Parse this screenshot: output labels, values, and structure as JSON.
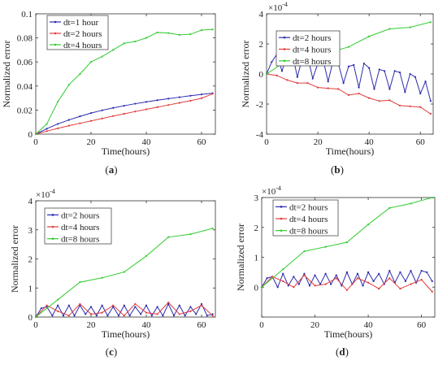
{
  "figure": {
    "panels": [
      {
        "id": "a",
        "label_open": "(",
        "label_letter": "a",
        "label_close": ")",
        "ylabel": "Normalized error",
        "xlabel": "Time(hours)",
        "exponent": "",
        "xlim": [
          0,
          65
        ],
        "ylim": [
          0,
          0.1
        ],
        "xticks": [
          0,
          20,
          40,
          60
        ],
        "yticks": [
          0,
          0.02,
          0.04,
          0.06,
          0.08,
          0.1
        ],
        "ytick_labels": [
          "0",
          "0.02",
          "0.04",
          "0.06",
          "0.08",
          "0.1"
        ]
      },
      {
        "id": "b",
        "label_open": "(",
        "label_letter": "b",
        "label_close": ")",
        "ylabel": "Normalized error",
        "xlabel": "Time(hours)",
        "exponent": "×10",
        "exponent_power": "-4",
        "xlim": [
          0,
          65
        ],
        "ylim": [
          -4,
          4
        ],
        "xticks": [
          0,
          20,
          40,
          60
        ],
        "yticks": [
          -4,
          -2,
          0,
          2,
          4
        ],
        "ytick_labels": [
          "-4",
          "-2",
          "0",
          "2",
          "4"
        ]
      },
      {
        "id": "c",
        "label_open": "(",
        "label_letter": "c",
        "label_close": ")",
        "ylabel": "Normalized error",
        "xlabel": "Time(hours)",
        "exponent": "×10",
        "exponent_power": "-4",
        "xlim": [
          0,
          65
        ],
        "ylim": [
          0,
          4
        ],
        "xticks": [
          0,
          20,
          40,
          60
        ],
        "yticks": [
          0,
          1,
          2,
          3,
          4
        ],
        "ytick_labels": [
          "0",
          "1",
          "2",
          "3",
          "4"
        ]
      },
      {
        "id": "d",
        "label_open": "(",
        "label_letter": "d",
        "label_close": ")",
        "ylabel": "Normalized error",
        "xlabel": "Time(hours)",
        "exponent": "×10",
        "exponent_power": "-4",
        "xlim": [
          0,
          65
        ],
        "ylim": [
          -1,
          3
        ],
        "xticks": [
          0,
          20,
          40,
          60
        ],
        "yticks": [
          -1,
          0,
          1,
          2,
          3
        ],
        "ytick_labels": [
          "",
          "0",
          "1",
          "2",
          "3"
        ]
      }
    ]
  },
  "chart_data": [
    {
      "type": "line",
      "panel": "a",
      "xlabel": "Time(hours)",
      "ylabel": "Normalized error",
      "xlim": [
        0,
        65
      ],
      "ylim": [
        0,
        0.1
      ],
      "legend": "top-left",
      "grid": false,
      "series": [
        {
          "name": "dt=1 hour",
          "color": "#2b2bb0",
          "x": [
            0,
            4,
            8,
            12,
            16,
            20,
            24,
            28,
            32,
            36,
            40,
            44,
            48,
            52,
            56,
            60,
            64
          ],
          "y": [
            0,
            0.0045,
            0.0085,
            0.0118,
            0.0148,
            0.0175,
            0.0198,
            0.0218,
            0.0236,
            0.0253,
            0.0268,
            0.0282,
            0.0295,
            0.0307,
            0.0319,
            0.033,
            0.034
          ]
        },
        {
          "name": "dt=2 hours",
          "color": "#e03c3c",
          "x": [
            0,
            4,
            8,
            12,
            16,
            20,
            24,
            28,
            32,
            36,
            40,
            44,
            48,
            52,
            56,
            60,
            64
          ],
          "y": [
            0,
            0.0025,
            0.0048,
            0.007,
            0.009,
            0.011,
            0.013,
            0.015,
            0.0169,
            0.0188,
            0.0206,
            0.0224,
            0.0242,
            0.026,
            0.0278,
            0.0298,
            0.0335
          ]
        },
        {
          "name": "dt=4 hours",
          "color": "#33cc33",
          "x": [
            0,
            4,
            8,
            12,
            16,
            20,
            24,
            28,
            32,
            36,
            40,
            44,
            48,
            52,
            56,
            60,
            64
          ],
          "y": [
            0,
            0.0085,
            0.027,
            0.041,
            0.05,
            0.06,
            0.0645,
            0.07,
            0.0755,
            0.077,
            0.08,
            0.0845,
            0.084,
            0.0825,
            0.083,
            0.0865,
            0.087
          ]
        }
      ]
    },
    {
      "type": "line",
      "panel": "b",
      "xlabel": "Time(hours)",
      "ylabel": "Normalized error",
      "y_scale_note": "×10^-4",
      "xlim": [
        0,
        65
      ],
      "ylim": [
        -4,
        4
      ],
      "legend": "top-right",
      "grid": false,
      "series": [
        {
          "name": "dt=2 hours",
          "color": "#2b2bb0",
          "x": [
            0,
            2,
            4,
            6,
            8,
            10,
            12,
            14,
            16,
            18,
            20,
            22,
            24,
            26,
            28,
            30,
            32,
            34,
            36,
            38,
            40,
            42,
            44,
            46,
            48,
            50,
            52,
            54,
            56,
            58,
            60,
            62,
            64
          ],
          "y": [
            0,
            0.8,
            1.3,
            0.2,
            1.2,
            1.4,
            -0.2,
            1.1,
            1.2,
            -0.3,
            0.7,
            1.0,
            -0.5,
            0.9,
            0.7,
            -0.6,
            0.5,
            0.6,
            -0.9,
            0.7,
            0.4,
            -1.0,
            0.3,
            0.2,
            -1.0,
            0.2,
            0.1,
            -1.2,
            0.0,
            -0.2,
            -1.3,
            -0.5,
            -1.8
          ]
        },
        {
          "name": "dt=4 hours",
          "color": "#e03c3c",
          "x": [
            0,
            4,
            8,
            12,
            16,
            20,
            24,
            28,
            32,
            36,
            40,
            44,
            48,
            52,
            56,
            60,
            64
          ],
          "y": [
            0,
            -0.1,
            -0.4,
            -0.6,
            -0.6,
            -0.9,
            -0.95,
            -1.0,
            -1.4,
            -1.3,
            -1.6,
            -1.8,
            -1.75,
            -2.1,
            -2.15,
            -2.2,
            -2.65
          ]
        },
        {
          "name": "dt=8 hours",
          "color": "#33cc33",
          "x": [
            0,
            8,
            16,
            24,
            32,
            40,
            48,
            56,
            64
          ],
          "y": [
            0,
            0.9,
            1.2,
            1.4,
            1.8,
            2.5,
            3.0,
            3.1,
            3.45
          ]
        }
      ]
    },
    {
      "type": "line",
      "panel": "c",
      "xlabel": "Time(hours)",
      "ylabel": "Normalized error",
      "y_scale_note": "×10^-4",
      "xlim": [
        0,
        65
      ],
      "ylim": [
        0,
        4
      ],
      "legend": "top",
      "grid": false,
      "series": [
        {
          "name": "dt=2 hours",
          "color": "#2b2bb0",
          "x": [
            0,
            2,
            4,
            6,
            8,
            10,
            12,
            14,
            16,
            18,
            20,
            22,
            24,
            26,
            28,
            30,
            32,
            34,
            36,
            38,
            40,
            42,
            44,
            46,
            48,
            50,
            52,
            54,
            56,
            58,
            60,
            62,
            64
          ],
          "y": [
            0,
            0.3,
            0.35,
            0.05,
            0.4,
            0.05,
            0.4,
            0.05,
            0.4,
            0.1,
            0.35,
            0.05,
            0.4,
            0.05,
            0.35,
            0.05,
            0.4,
            0.05,
            0.35,
            0.1,
            0.4,
            0.05,
            0.35,
            0.05,
            0.45,
            0.05,
            0.4,
            0.05,
            0.35,
            0.1,
            0.45,
            0.05,
            0.1
          ]
        },
        {
          "name": "dt=4 hours",
          "color": "#e03c3c",
          "x": [
            0,
            4,
            8,
            12,
            16,
            20,
            24,
            28,
            32,
            36,
            40,
            44,
            48,
            52,
            56,
            60,
            64
          ],
          "y": [
            0,
            0.4,
            0.2,
            0.05,
            0.45,
            0.1,
            0.15,
            0.4,
            0.05,
            0.45,
            0.15,
            0.1,
            0.5,
            0.1,
            0.2,
            0.4,
            0.05
          ]
        },
        {
          "name": "dt=8 hours",
          "color": "#33cc33",
          "x": [
            0,
            8,
            16,
            24,
            32,
            40,
            48,
            56,
            64
          ],
          "y": [
            0,
            0.6,
            1.2,
            1.35,
            1.55,
            2.1,
            2.75,
            2.85,
            3.05
          ]
        }
      ]
    },
    {
      "type": "line",
      "panel": "d",
      "xlabel": "Time(hours)",
      "ylabel": "Normalized error",
      "y_scale_note": "×10^-4",
      "xlim": [
        0,
        65
      ],
      "ylim": [
        -1,
        3
      ],
      "legend": "top-left",
      "grid": false,
      "series": [
        {
          "name": "dt=2 hours",
          "color": "#2b2bb0",
          "x": [
            0,
            2,
            4,
            6,
            8,
            10,
            12,
            14,
            16,
            18,
            20,
            22,
            24,
            26,
            28,
            30,
            32,
            34,
            36,
            38,
            40,
            42,
            44,
            46,
            48,
            50,
            52,
            54,
            56,
            58,
            60,
            62,
            64
          ],
          "y": [
            0,
            0.3,
            0.35,
            0.0,
            0.45,
            0.05,
            0.35,
            0.1,
            0.45,
            0.05,
            0.4,
            0.1,
            0.45,
            0.1,
            0.4,
            0.05,
            0.5,
            0.1,
            0.45,
            0.05,
            0.5,
            0.2,
            0.45,
            0.1,
            0.55,
            0.15,
            0.5,
            0.2,
            0.55,
            0.15,
            0.55,
            0.5,
            0.2
          ]
        },
        {
          "name": "dt=4 hours",
          "color": "#e03c3c",
          "x": [
            0,
            4,
            8,
            12,
            16,
            20,
            24,
            28,
            32,
            36,
            40,
            44,
            48,
            52,
            56,
            60,
            64
          ],
          "y": [
            0,
            0.35,
            0.2,
            0.0,
            0.4,
            0.05,
            0.1,
            0.3,
            -0.1,
            0.3,
            0.15,
            -0.05,
            0.3,
            -0.05,
            0.1,
            0.25,
            -0.15
          ]
        },
        {
          "name": "dt=8 hours",
          "color": "#33cc33",
          "x": [
            0,
            8,
            16,
            24,
            32,
            40,
            48,
            56,
            64
          ],
          "y": [
            0,
            0.6,
            1.2,
            1.35,
            1.5,
            2.1,
            2.65,
            2.8,
            3.0
          ]
        }
      ]
    }
  ]
}
